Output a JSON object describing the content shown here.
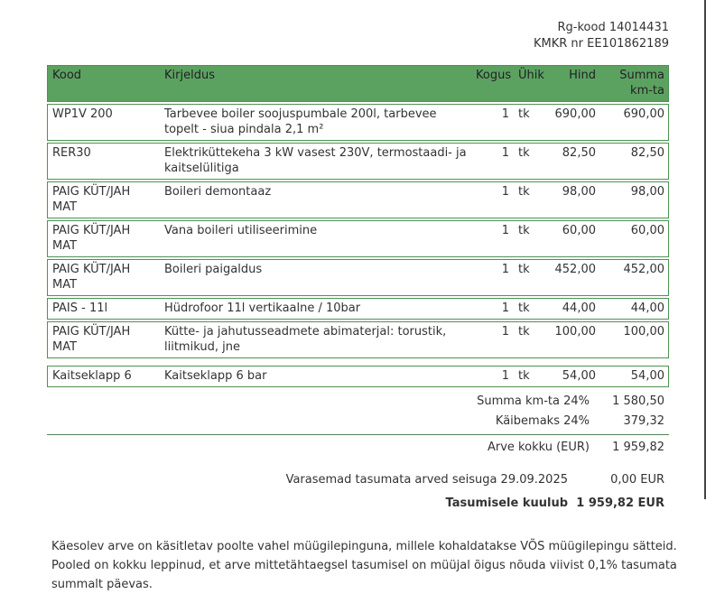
{
  "header": {
    "rg_kood": "Rg-kood 14014431",
    "kmkr": "KMKR nr EE101862189"
  },
  "table": {
    "columns": {
      "kood": "Kood",
      "kirjeldus": "Kirjeldus",
      "kogus": "Kogus",
      "yhik": "Ühik",
      "hind": "Hind",
      "summa": "Summa\nkm-ta"
    },
    "rows": [
      {
        "kood": "WP1V 200",
        "kirjeldus": "Tarbevee boiler soojuspumbale 200l, tarbevee topelt - siua pindala 2,1 m²",
        "kogus": "1",
        "yhik": "tk",
        "hind": "690,00",
        "summa": "690,00"
      },
      {
        "kood": "RER30",
        "kirjeldus": "Elektriküttekeha 3 kW vasest 230V, termostaadi- ja kaitselülitiga",
        "kogus": "1",
        "yhik": "tk",
        "hind": "82,50",
        "summa": "82,50"
      },
      {
        "kood": "PAIG KÜT/JAH MAT",
        "kirjeldus": "Boileri demontaaz",
        "kogus": "1",
        "yhik": "tk",
        "hind": "98,00",
        "summa": "98,00"
      },
      {
        "kood": "PAIG KÜT/JAH MAT",
        "kirjeldus": "Vana boileri utiliseerimine",
        "kogus": "1",
        "yhik": "tk",
        "hind": "60,00",
        "summa": "60,00"
      },
      {
        "kood": "PAIG KÜT/JAH MAT",
        "kirjeldus": "Boileri paigaldus",
        "kogus": "1",
        "yhik": "tk",
        "hind": "452,00",
        "summa": "452,00"
      },
      {
        "kood": "PAIS - 11l",
        "kirjeldus": "Hüdrofoor 11l vertikaalne / 10bar",
        "kogus": "1",
        "yhik": "tk",
        "hind": "44,00",
        "summa": "44,00"
      },
      {
        "kood": "PAIG KÜT/JAH MAT",
        "kirjeldus": "Kütte- ja jahutusseadmete abimaterjal: torustik, liitmikud, jne",
        "kogus": "1",
        "yhik": "tk",
        "hind": "100,00",
        "summa": "100,00"
      },
      {
        "kood": "Kaitseklapp 6",
        "kirjeldus": "Kaitseklapp 6 bar",
        "kogus": "1",
        "yhik": "tk",
        "hind": "54,00",
        "summa": "54,00"
      }
    ]
  },
  "summary": {
    "subtotal": {
      "label": "Summa km-ta 24%",
      "value": "1 580,50"
    },
    "vat": {
      "label": "Käibemaks 24%",
      "value": "379,32"
    },
    "total": {
      "label": "Arve kokku  (EUR)",
      "value": "1 959,82"
    }
  },
  "payment": {
    "previous": {
      "label": "Varasemad tasumata arved seisuga 29.09.2025",
      "value": "0,00 EUR"
    },
    "due": {
      "label": "Tasumisele kuulub",
      "value": "1 959,82 EUR"
    }
  },
  "terms": {
    "line1": "Käesolev arve on käsitletav poolte vahel müügilepinguna, millele kohaldatakse VÕS müügilepingu sätteid.",
    "line2": "Pooled on kokku leppinud, et arve mittetähtaegsel tasumisel on müüjal õigus nõuda viivist 0,1% tasumata summalt päevas."
  },
  "colors": {
    "header_green": "#5ba261",
    "table_border_green": "#4c9352",
    "divider": "#55815a",
    "text": "#333333"
  }
}
